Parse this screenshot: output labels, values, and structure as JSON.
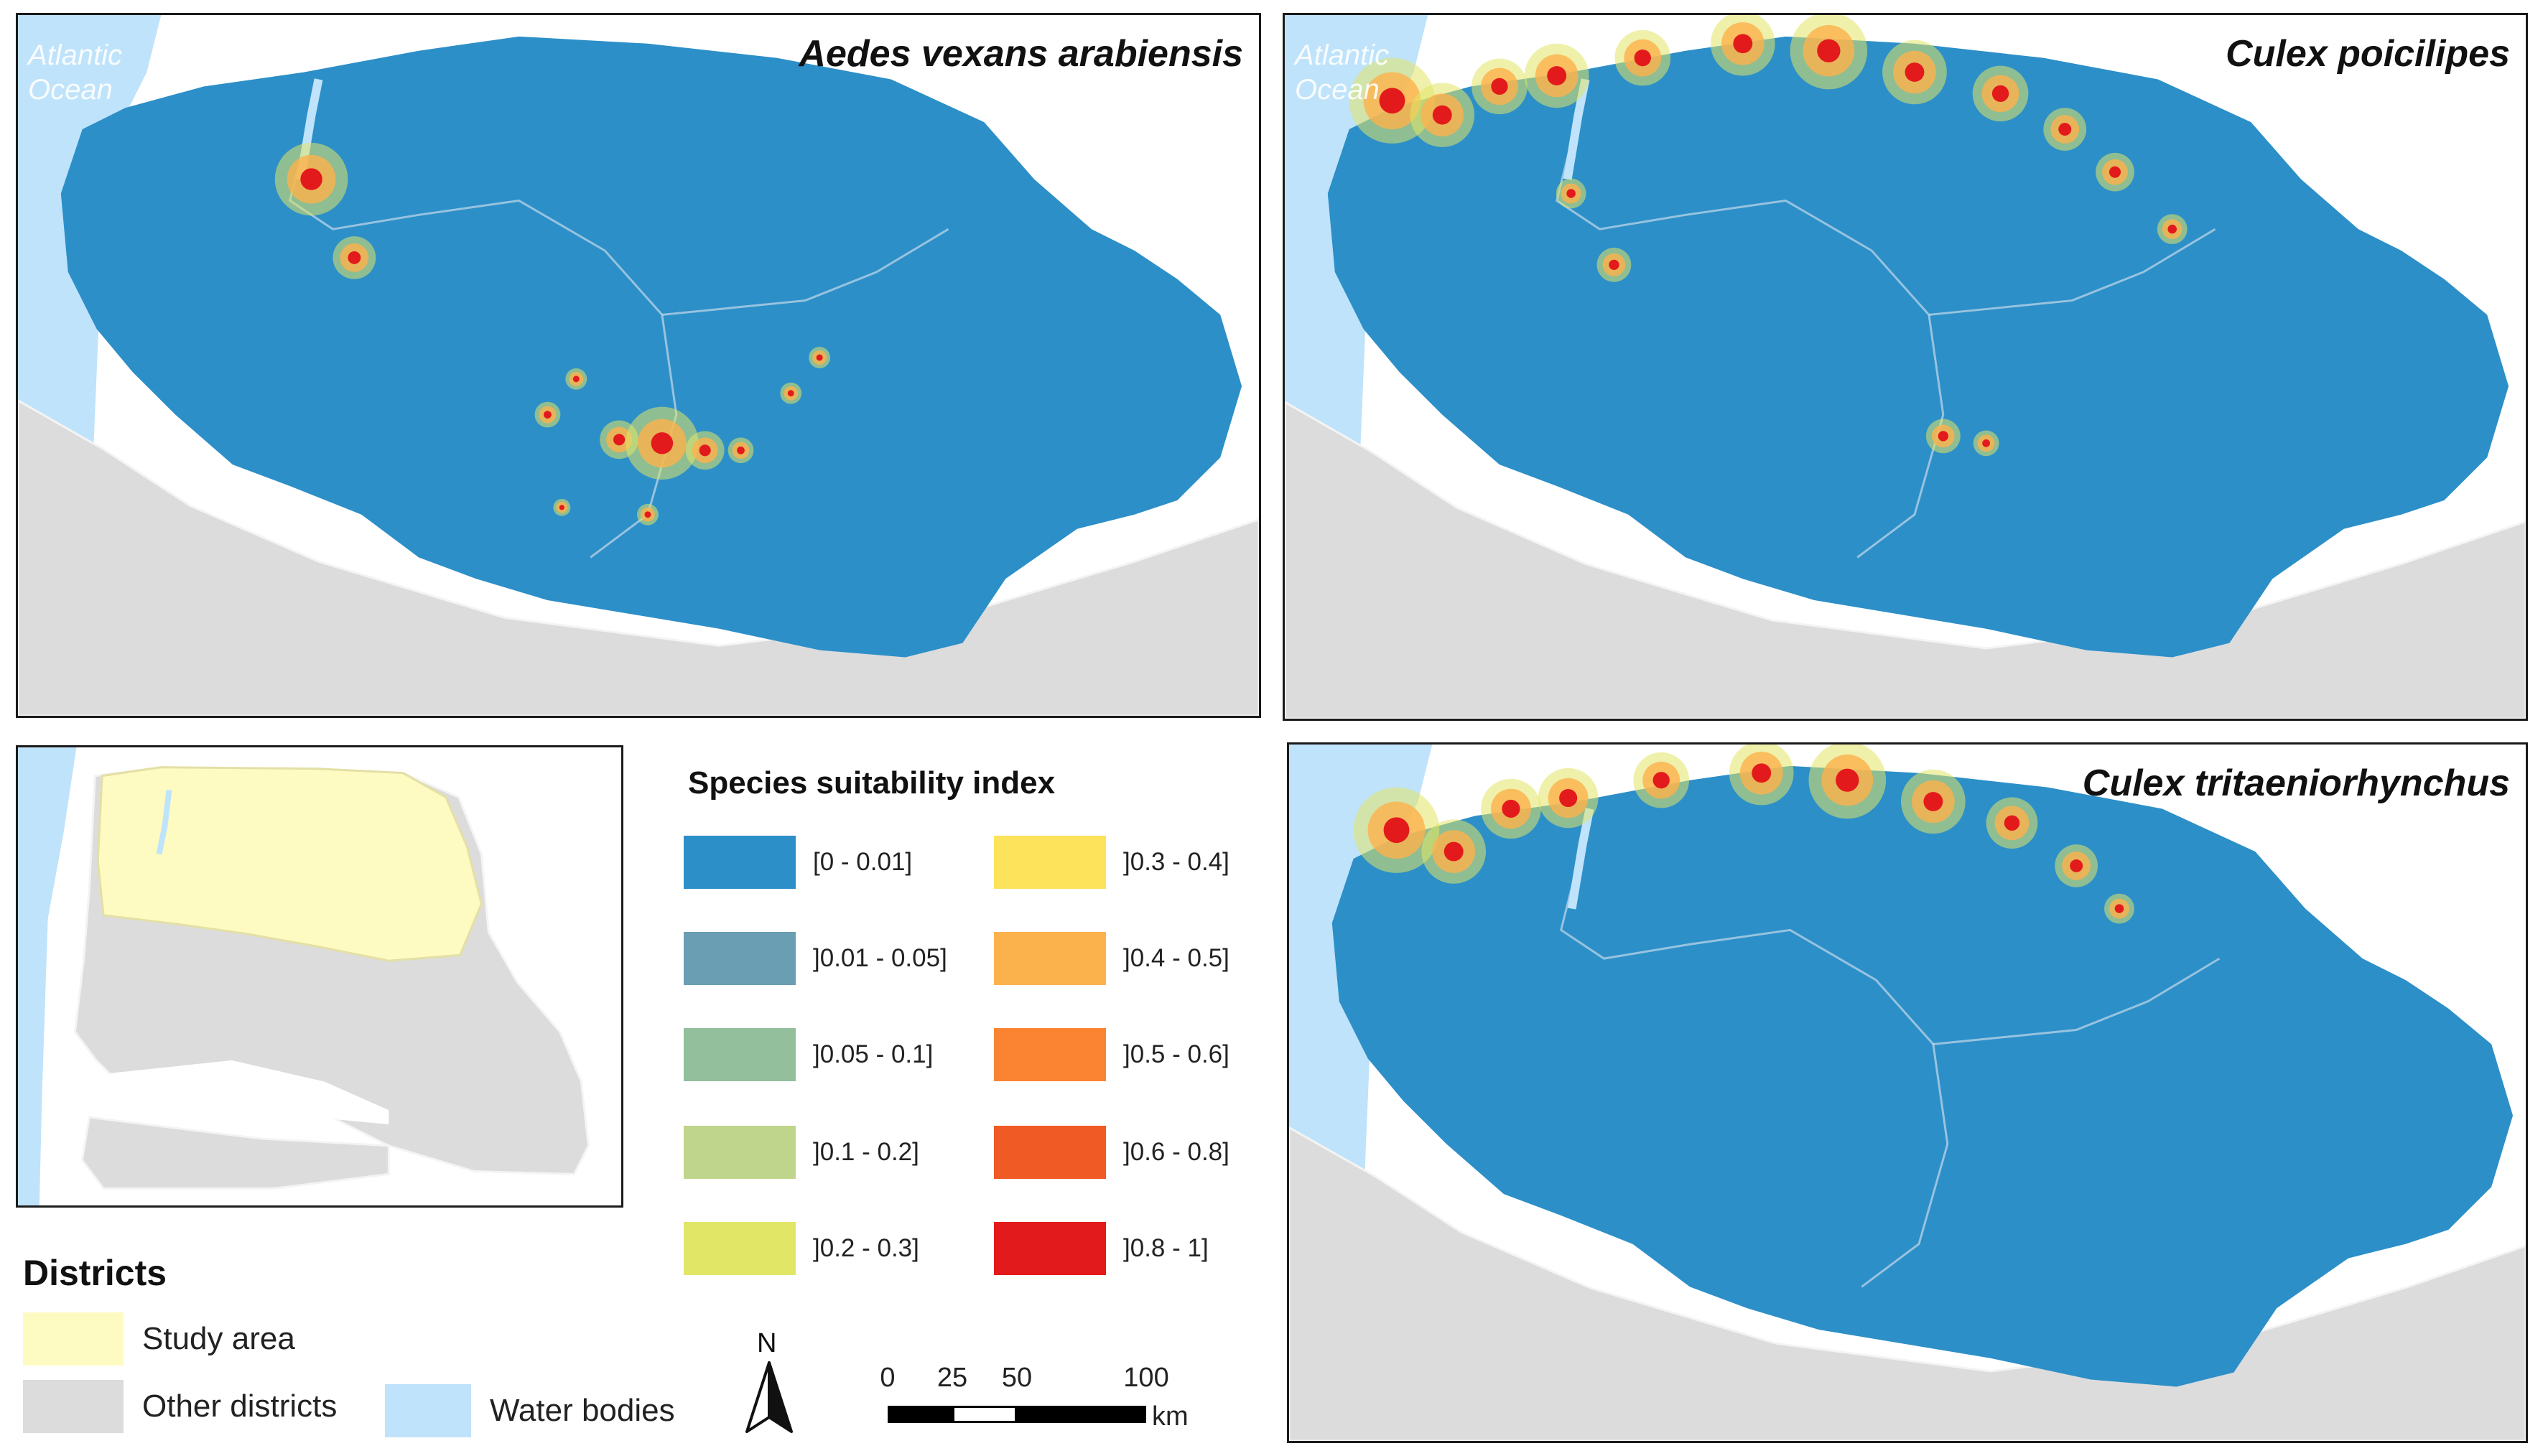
{
  "maps": [
    {
      "title": "Aedes vexans arabiensis",
      "ocean_label": "Atlantic Ocean"
    },
    {
      "title": "Culex poicilipes",
      "ocean_label": "Atlantic Ocean"
    },
    {
      "title": "Culex tritaeniorhynchus",
      "ocean_label": ""
    }
  ],
  "legend": {
    "title": "Species suitability index",
    "classes": [
      {
        "label": "[0 - 0.01]",
        "color": "#2c8fc8"
      },
      {
        "label": "]0.01 - 0.05]",
        "color": "#6a9fb3"
      },
      {
        "label": "]0.05 - 0.1]",
        "color": "#93bf9d"
      },
      {
        "label": "]0.1 - 0.2]",
        "color": "#bfd58b"
      },
      {
        "label": "]0.2 - 0.3]",
        "color": "#e2e666"
      },
      {
        "label": "]0.3 - 0.4]",
        "color": "#fde25c"
      },
      {
        "label": "]0.4 - 0.5]",
        "color": "#fcb24c"
      },
      {
        "label": "]0.5 - 0.6]",
        "color": "#fa8432"
      },
      {
        "label": "]0.6 - 0.8]",
        "color": "#f05a24"
      },
      {
        "label": "]0.8 - 1]",
        "color": "#e31a1c"
      }
    ]
  },
  "districts": {
    "title": "Districts",
    "items": [
      {
        "label": "Study area",
        "color": "#fefbc2"
      },
      {
        "label": "Other districts",
        "color": "#dcdcdc"
      },
      {
        "label": "Water bodies",
        "color": "#bfe3fa"
      }
    ]
  },
  "north_arrow": "N",
  "scale_bar": {
    "ticks": [
      "0",
      "25",
      "50",
      "100"
    ],
    "unit": "km"
  },
  "colors": {
    "panel_border": "#1b1b1b",
    "border_line": "#dfe6ee"
  }
}
